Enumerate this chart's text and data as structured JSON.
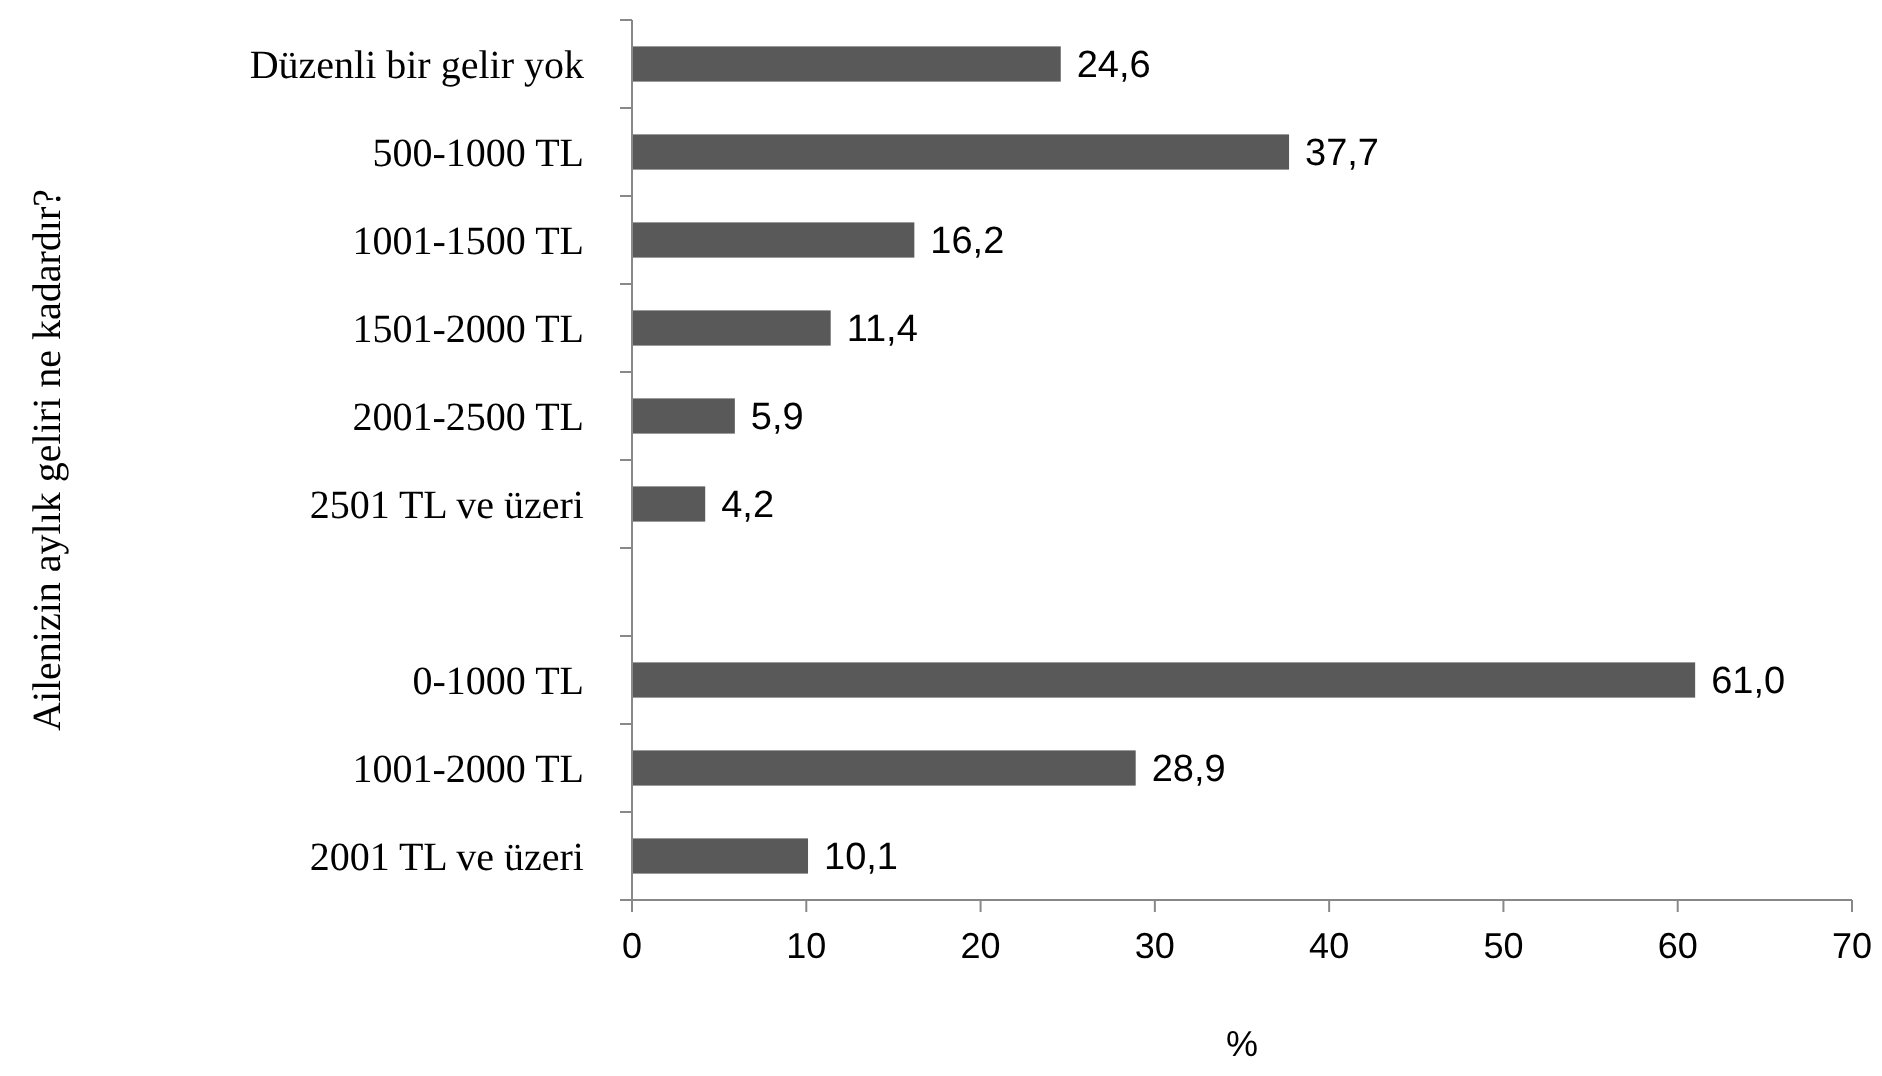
{
  "chart_data": {
    "type": "bar",
    "orientation": "horizontal",
    "xlabel": "%",
    "ylabel": "Ailenizin aylık geliri ne kadardır?",
    "categories": [
      "Düzenli bir gelir yok",
      "500-1000 TL",
      "1001-1500 TL",
      "1501-2000 TL",
      "2001-2500 TL",
      "2501 TL ve üzeri",
      null,
      "0-1000 TL",
      "1001-2000 TL",
      "2001 TL ve üzeri"
    ],
    "values": [
      24.6,
      37.7,
      16.2,
      11.4,
      5.9,
      4.2,
      null,
      61.0,
      28.9,
      10.1
    ],
    "value_labels": [
      "24,6",
      "37,7",
      "16,2",
      "11,4",
      "5,9",
      "4,2",
      null,
      "61,0",
      "28,9",
      "10,1"
    ],
    "color": "#595959",
    "xlim": [
      0,
      70
    ],
    "xticks": [
      0,
      10,
      20,
      30,
      40,
      50,
      60,
      70
    ],
    "grid": false
  }
}
